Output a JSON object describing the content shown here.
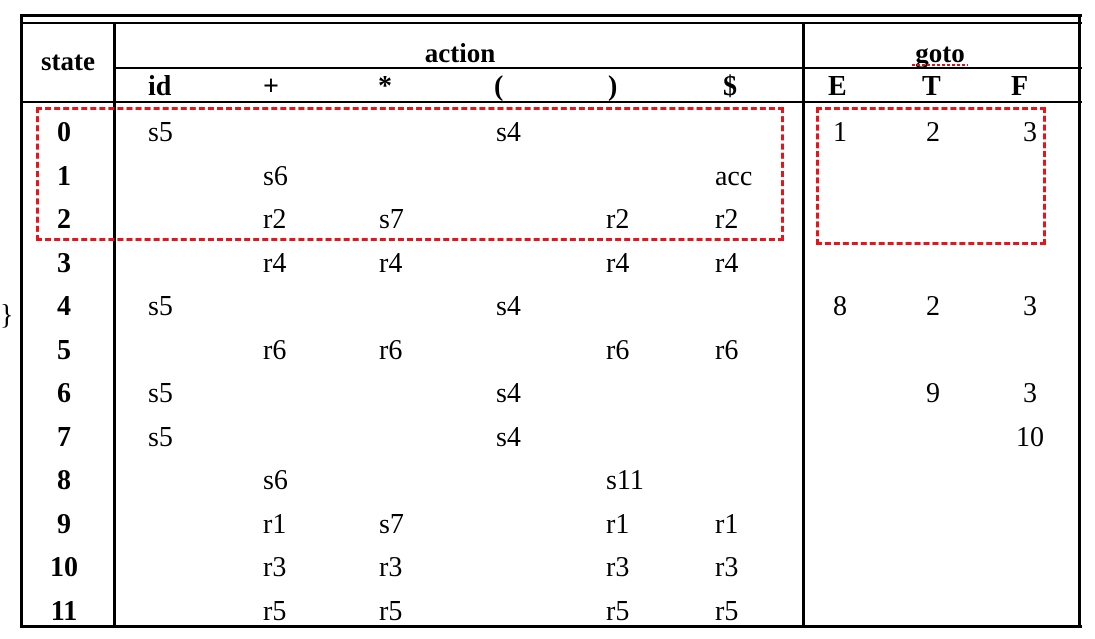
{
  "table": {
    "state_header": "state",
    "action_header": "action",
    "goto_header": "goto",
    "action_columns": [
      "id",
      "+",
      "*",
      "(",
      ")",
      "$"
    ],
    "goto_columns": [
      "E",
      "T",
      "F"
    ],
    "rows": [
      {
        "state": "0",
        "action": [
          "s5",
          "",
          "",
          "s4",
          "",
          ""
        ],
        "goto": [
          "1",
          "2",
          "3"
        ]
      },
      {
        "state": "1",
        "action": [
          "",
          "s6",
          "",
          "",
          "",
          "acc"
        ],
        "goto": [
          "",
          "",
          ""
        ]
      },
      {
        "state": "2",
        "action": [
          "",
          "r2",
          "s7",
          "",
          "r2",
          "r2"
        ],
        "goto": [
          "",
          "",
          ""
        ]
      },
      {
        "state": "3",
        "action": [
          "",
          "r4",
          "r4",
          "",
          "r4",
          "r4"
        ],
        "goto": [
          "",
          "",
          ""
        ]
      },
      {
        "state": "4",
        "action": [
          "s5",
          "",
          "",
          "s4",
          "",
          ""
        ],
        "goto": [
          "8",
          "2",
          "3"
        ]
      },
      {
        "state": "5",
        "action": [
          "",
          "r6",
          "r6",
          "",
          "r6",
          "r6"
        ],
        "goto": [
          "",
          "",
          ""
        ]
      },
      {
        "state": "6",
        "action": [
          "s5",
          "",
          "",
          "s4",
          "",
          ""
        ],
        "goto": [
          "",
          "9",
          "3"
        ]
      },
      {
        "state": "7",
        "action": [
          "s5",
          "",
          "",
          "s4",
          "",
          ""
        ],
        "goto": [
          "",
          "",
          "10"
        ]
      },
      {
        "state": "8",
        "action": [
          "",
          "s6",
          "",
          "",
          "s11",
          ""
        ],
        "goto": [
          "",
          "",
          ""
        ]
      },
      {
        "state": "9",
        "action": [
          "",
          "r1",
          "s7",
          "",
          "r1",
          "r1"
        ],
        "goto": [
          "",
          "",
          ""
        ]
      },
      {
        "state": "10",
        "action": [
          "",
          "r3",
          "r3",
          "",
          "r3",
          "r3"
        ],
        "goto": [
          "",
          "",
          ""
        ]
      },
      {
        "state": "11",
        "action": [
          "",
          "r5",
          "r5",
          "",
          "r5",
          "r5"
        ],
        "goto": [
          "",
          "",
          ""
        ]
      }
    ]
  },
  "stray_brace": "}",
  "highlight_color": "#e8141a"
}
